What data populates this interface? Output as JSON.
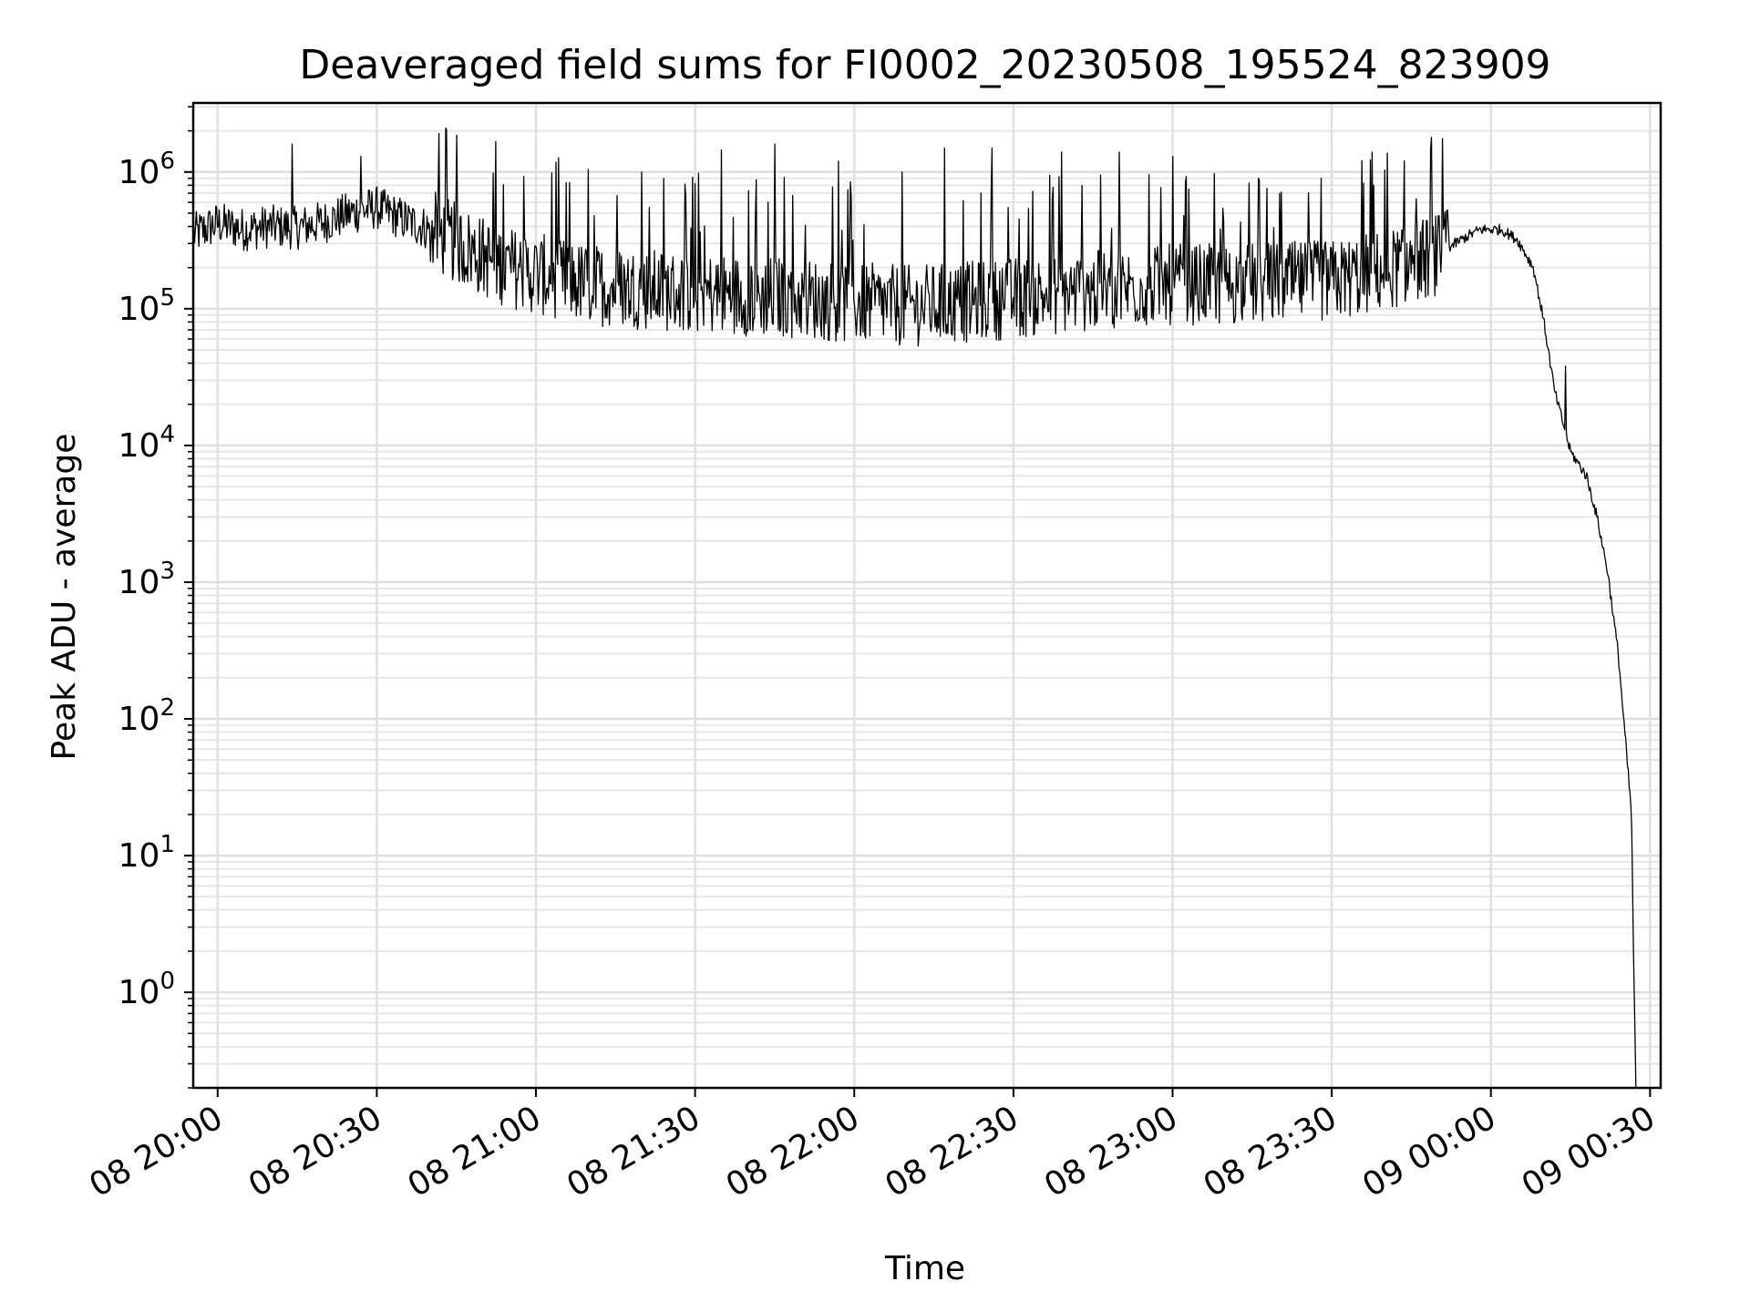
{
  "chart_data": {
    "type": "line",
    "title": "Deaveraged field sums for FI0002_20230508_195524_823909",
    "xlabel": "Time",
    "ylabel": "Peak ADU - average",
    "yscale": "log",
    "grid": true,
    "grid_minor": true,
    "legend": "none",
    "xlim": [
      "2023-05-08 19:55:24",
      "2023-05-09 00:32:00"
    ],
    "ylim": [
      0.2,
      3200000
    ],
    "x_ticks": [
      {
        "t": "2023-05-08 20:00",
        "label": "08 20:00"
      },
      {
        "t": "2023-05-08 20:30",
        "label": "08 20:30"
      },
      {
        "t": "2023-05-08 21:00",
        "label": "08 21:00"
      },
      {
        "t": "2023-05-08 21:30",
        "label": "08 21:30"
      },
      {
        "t": "2023-05-08 22:00",
        "label": "08 22:00"
      },
      {
        "t": "2023-05-08 22:30",
        "label": "08 22:30"
      },
      {
        "t": "2023-05-08 23:00",
        "label": "08 23:00"
      },
      {
        "t": "2023-05-08 23:30",
        "label": "08 23:30"
      },
      {
        "t": "2023-05-09 00:00",
        "label": "09 00:00"
      },
      {
        "t": "2023-05-09 00:30",
        "label": "09 00:30"
      }
    ],
    "y_ticks": [
      {
        "value": 1,
        "base": "10",
        "exp": "0"
      },
      {
        "value": 10,
        "base": "10",
        "exp": "1"
      },
      {
        "value": 100,
        "base": "10",
        "exp": "2"
      },
      {
        "value": 1000,
        "base": "10",
        "exp": "3"
      },
      {
        "value": 10000,
        "base": "10",
        "exp": "4"
      },
      {
        "value": 100000,
        "base": "10",
        "exp": "5"
      },
      {
        "value": 1000000,
        "base": "10",
        "exp": "6"
      }
    ],
    "series": [
      {
        "color": "#000000",
        "points": [
          [
            "2023-05-08 19:55:30",
            350000
          ],
          [
            "2023-05-08 20:00:00",
            420000
          ],
          [
            "2023-05-08 20:05:00",
            380000
          ],
          [
            "2023-05-08 20:10:00",
            400000
          ],
          [
            "2023-05-08 20:15:00",
            390000
          ],
          [
            "2023-05-08 20:20:00",
            430000
          ],
          [
            "2023-05-08 20:25:00",
            500000
          ],
          [
            "2023-05-08 20:30:00",
            550000
          ],
          [
            "2023-05-08 20:35:00",
            450000
          ],
          [
            "2023-05-08 20:40:00",
            380000
          ],
          [
            "2023-05-08 20:45:00",
            300000
          ],
          [
            "2023-05-08 20:50:00",
            240000
          ],
          [
            "2023-05-08 20:55:00",
            200000
          ],
          [
            "2023-05-08 21:00:00",
            180000
          ],
          [
            "2023-05-08 21:10:00",
            150000
          ],
          [
            "2023-05-08 21:20:00",
            140000
          ],
          [
            "2023-05-08 21:30:00",
            130000
          ],
          [
            "2023-05-08 21:40:00",
            125000
          ],
          [
            "2023-05-08 21:50:00",
            120000
          ],
          [
            "2023-05-08 22:00:00",
            110000
          ],
          [
            "2023-05-08 22:10:00",
            105000
          ],
          [
            "2023-05-08 22:20:00",
            110000
          ],
          [
            "2023-05-08 22:30:00",
            120000
          ],
          [
            "2023-05-08 22:40:00",
            130000
          ],
          [
            "2023-05-08 22:50:00",
            140000
          ],
          [
            "2023-05-08 23:00:00",
            150000
          ],
          [
            "2023-05-08 23:10:00",
            150000
          ],
          [
            "2023-05-08 23:20:00",
            155000
          ],
          [
            "2023-05-08 23:30:00",
            160000
          ],
          [
            "2023-05-08 23:40:00",
            190000
          ],
          [
            "2023-05-08 23:50:00",
            250000
          ],
          [
            "2023-05-08 23:55:00",
            330000
          ],
          [
            "2023-05-08 23:58:00",
            380000
          ],
          [
            "2023-05-09 00:02:00",
            380000
          ],
          [
            "2023-05-09 00:05:00",
            320000
          ],
          [
            "2023-05-09 00:08:00",
            200000
          ],
          [
            "2023-05-09 00:10:00",
            80000
          ],
          [
            "2023-05-09 00:12:00",
            25000
          ],
          [
            "2023-05-09 00:15:00",
            9000
          ],
          [
            "2023-05-09 00:18:00",
            6000
          ],
          [
            "2023-05-09 00:20:00",
            3000
          ],
          [
            "2023-05-09 00:22:00",
            1200
          ],
          [
            "2023-05-09 00:24:00",
            300
          ],
          [
            "2023-05-09 00:25:30",
            60
          ],
          [
            "2023-05-09 00:26:30",
            20
          ],
          [
            "2023-05-09 00:27:00",
            1
          ],
          [
            "2023-05-09 00:27:20",
            0.2
          ]
        ],
        "spikes": [
          [
            "2023-05-08 20:14:00",
            1600000
          ],
          [
            "2023-05-08 20:27:00",
            1300000
          ],
          [
            "2023-05-08 21:20:00",
            1000000
          ],
          [
            "2023-05-08 21:35:00",
            1450000
          ],
          [
            "2023-05-08 21:45:00",
            1600000
          ],
          [
            "2023-05-08 21:57:00",
            1200000
          ],
          [
            "2023-05-08 22:09:00",
            1000000
          ],
          [
            "2023-05-08 22:17:00",
            1500000
          ],
          [
            "2023-05-08 22:26:00",
            1500000
          ],
          [
            "2023-05-08 22:39:00",
            1400000
          ],
          [
            "2023-05-08 22:50:00",
            1400000
          ],
          [
            "2023-05-08 23:00:00",
            1300000
          ],
          [
            "2023-05-08 23:28:00",
            900000
          ],
          [
            "2023-05-08 23:38:00",
            800000
          ],
          [
            "2023-05-09 00:14:00",
            38000
          ]
        ]
      }
    ]
  }
}
